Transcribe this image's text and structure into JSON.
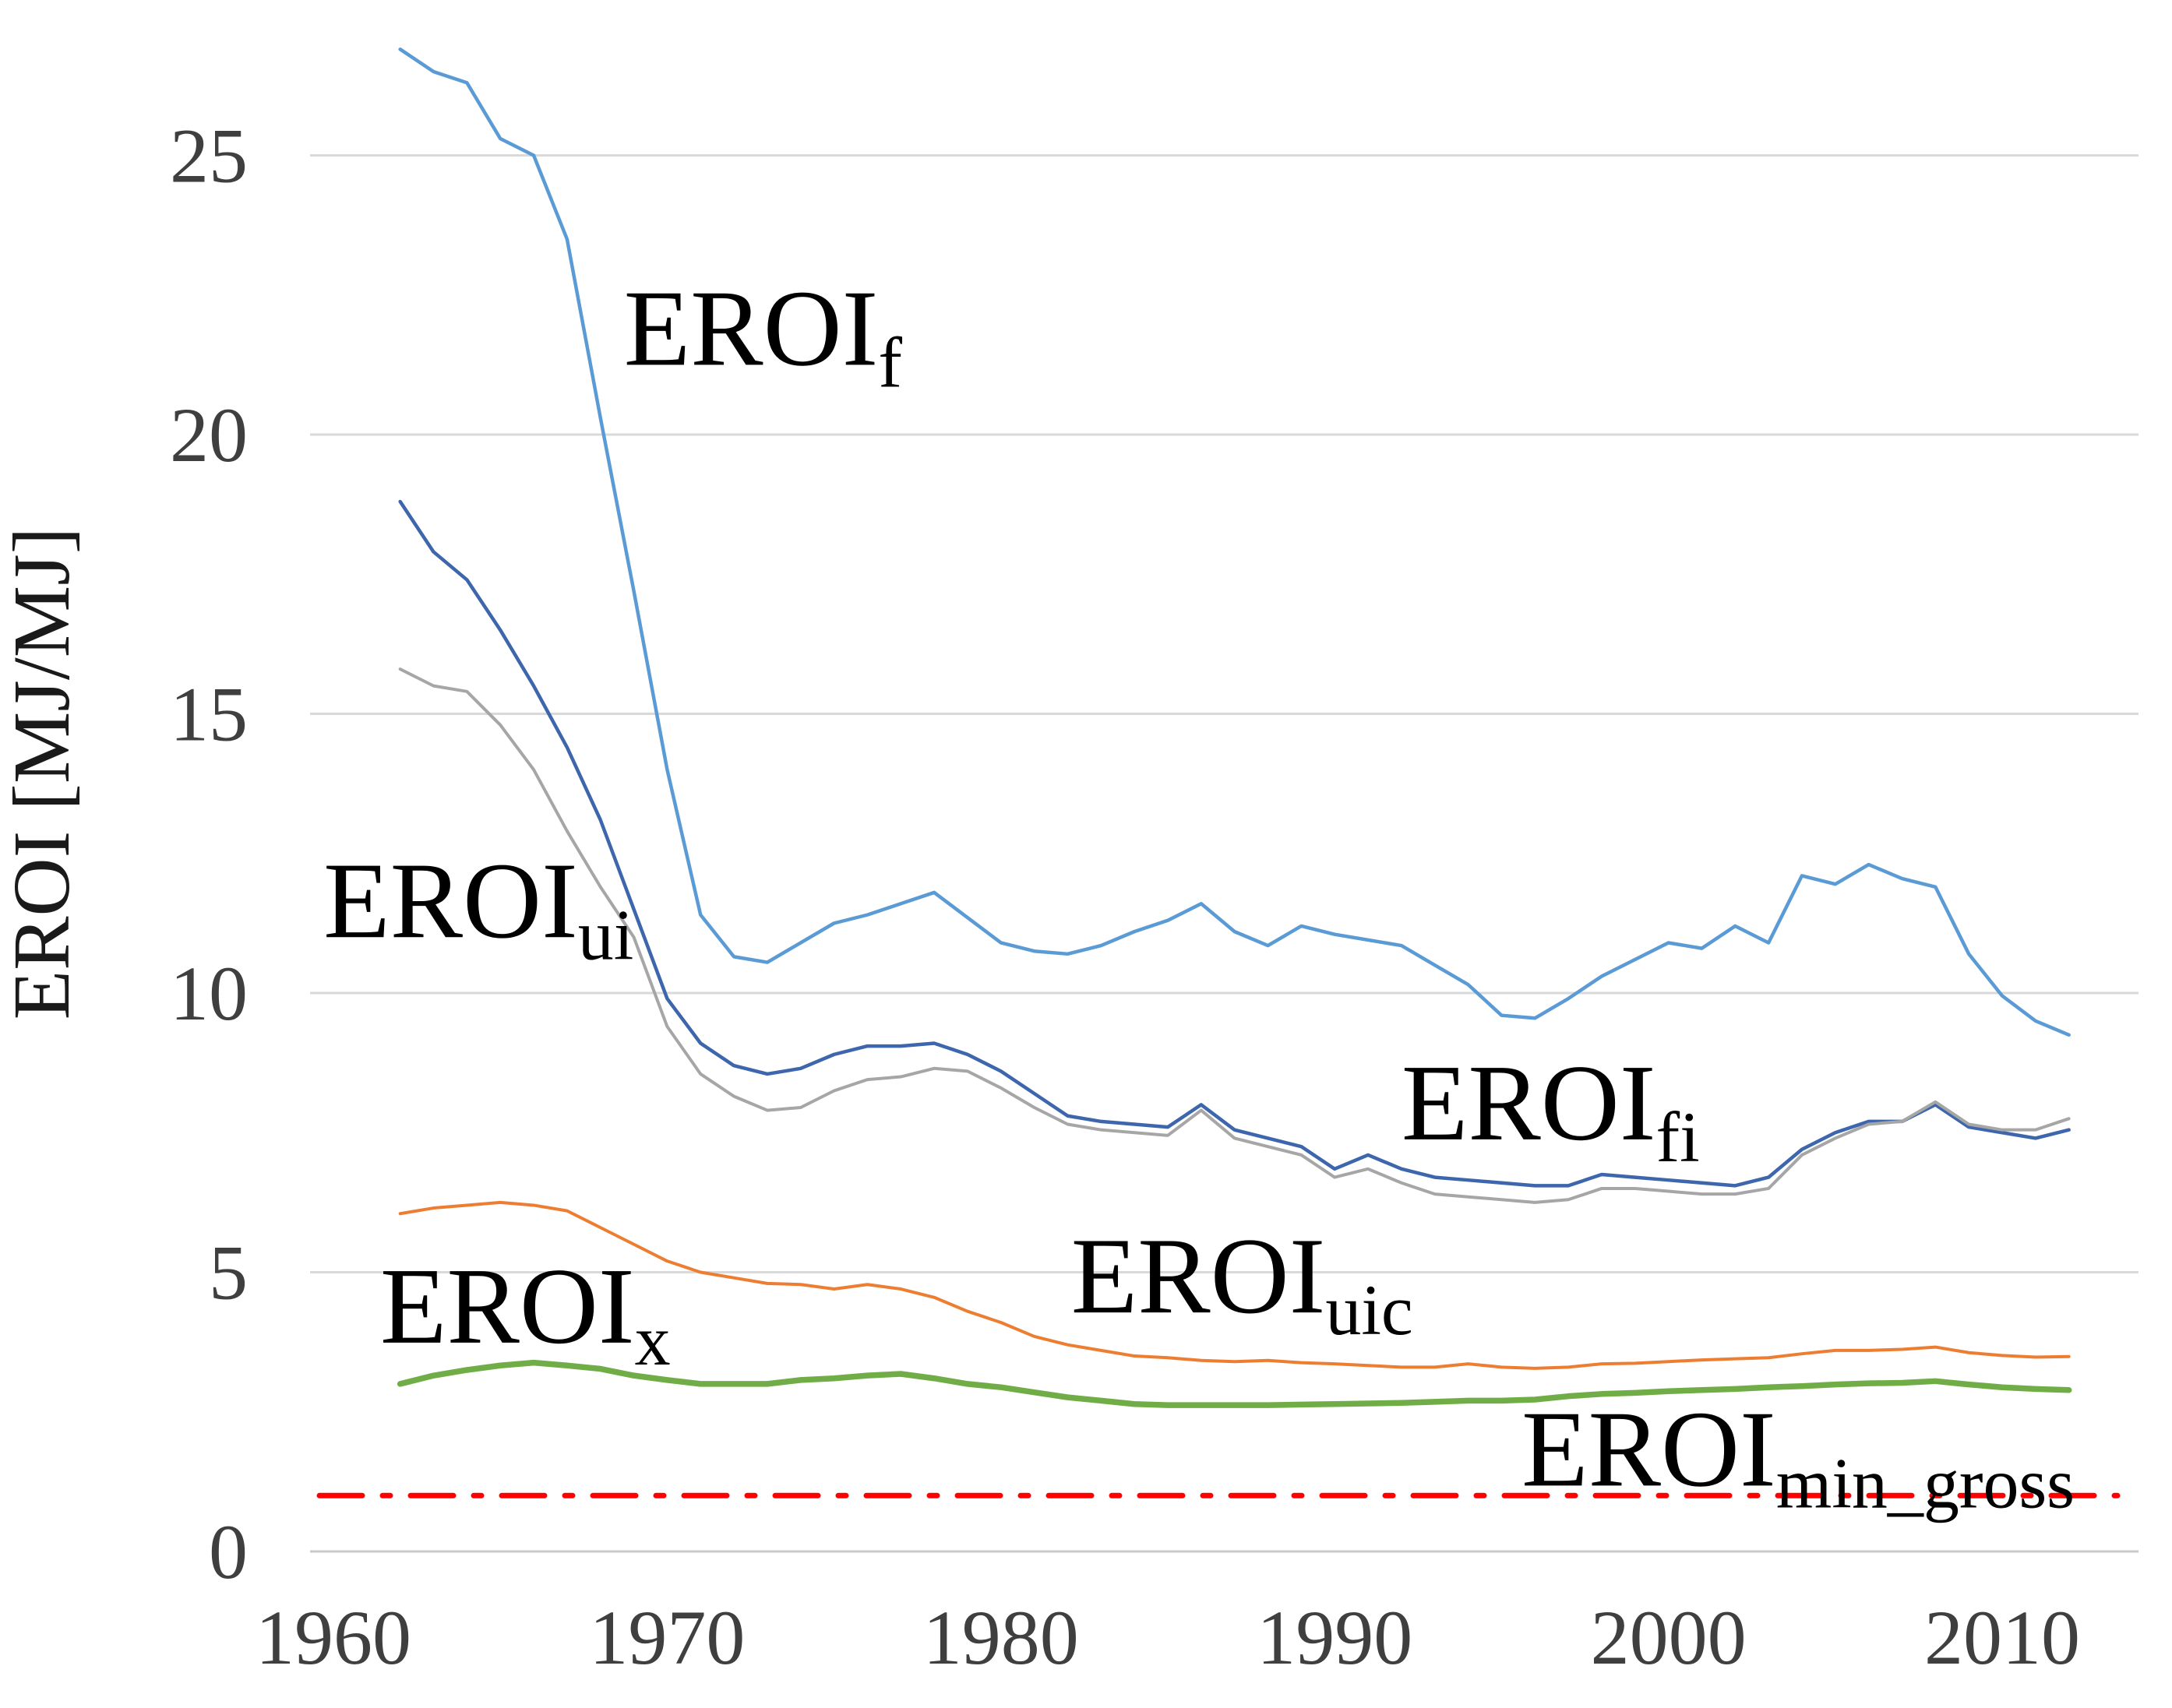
{
  "chart_data": {
    "type": "line",
    "title": "",
    "xlabel": "",
    "ylabel": "EROI [MJ/MJ]",
    "xlim": [
      1959.3,
      2014.9
    ],
    "ylim": [
      0,
      27.8
    ],
    "x_ticks": [
      1960,
      1970,
      1980,
      1990,
      2000,
      2010
    ],
    "y_ticks": [
      0,
      5,
      10,
      15,
      20,
      25
    ],
    "grid": "horizontal-only",
    "legend": "inline-annotations",
    "colors": {
      "grid": "#D9D9D9",
      "axis": "#C9C9C9",
      "tick_text": "#3F3F3F",
      "annotation_text": "#000000",
      "background": "#FFFFFF"
    },
    "years": [
      1962,
      1963,
      1964,
      1965,
      1966,
      1967,
      1968,
      1969,
      1970,
      1971,
      1972,
      1973,
      1974,
      1975,
      1976,
      1977,
      1978,
      1979,
      1980,
      1981,
      1982,
      1983,
      1984,
      1985,
      1986,
      1987,
      1988,
      1989,
      1990,
      1991,
      1992,
      1993,
      1994,
      1995,
      1996,
      1997,
      1998,
      1999,
      2000,
      2001,
      2002,
      2003,
      2004,
      2005,
      2006,
      2007,
      2008,
      2009,
      2010,
      2011,
      2012
    ],
    "series": [
      {
        "id": "EROIf",
        "label_main": "EROI",
        "label_sub": "f",
        "color": "#5B9BD5",
        "stroke_width": 4.5,
        "values": [
          26.9,
          26.5,
          26.3,
          25.3,
          25.0,
          23.5,
          20.3,
          17.2,
          14.0,
          11.4,
          10.65,
          10.55,
          10.9,
          11.25,
          11.4,
          11.6,
          11.8,
          11.35,
          10.9,
          10.75,
          10.7,
          10.85,
          11.1,
          11.3,
          11.6,
          11.1,
          10.85,
          11.2,
          11.05,
          10.95,
          10.85,
          10.5,
          10.15,
          9.6,
          9.55,
          9.9,
          10.3,
          10.6,
          10.9,
          10.8,
          11.2,
          10.9,
          12.1,
          11.95,
          12.3,
          12.05,
          11.9,
          10.7,
          9.95,
          9.5,
          9.25
        ]
      },
      {
        "id": "EROIui",
        "label_main": "EROI",
        "label_sub": "ui",
        "color": "#3D66AC",
        "stroke_width": 4.5,
        "values": [
          18.8,
          17.9,
          17.4,
          16.5,
          15.5,
          14.4,
          13.1,
          11.5,
          9.9,
          9.1,
          8.7,
          8.55,
          8.65,
          8.9,
          9.05,
          9.05,
          9.1,
          8.9,
          8.6,
          8.2,
          7.8,
          7.7,
          7.65,
          7.6,
          8.0,
          7.55,
          7.4,
          7.25,
          6.85,
          7.1,
          6.85,
          6.7,
          6.65,
          6.6,
          6.55,
          6.55,
          6.75,
          6.7,
          6.65,
          6.6,
          6.55,
          6.7,
          7.2,
          7.5,
          7.7,
          7.7,
          8.0,
          7.6,
          7.5,
          7.4,
          7.55
        ]
      },
      {
        "id": "EROIfi",
        "label_main": "EROI",
        "label_sub": "fi",
        "color": "#A6A6A6",
        "stroke_width": 4,
        "values": [
          15.8,
          15.5,
          15.4,
          14.8,
          14.0,
          12.9,
          11.9,
          11.0,
          9.4,
          8.55,
          8.15,
          7.9,
          7.95,
          8.25,
          8.45,
          8.5,
          8.65,
          8.6,
          8.3,
          7.95,
          7.65,
          7.55,
          7.5,
          7.45,
          7.9,
          7.4,
          7.25,
          7.1,
          6.7,
          6.85,
          6.6,
          6.4,
          6.35,
          6.3,
          6.25,
          6.3,
          6.5,
          6.5,
          6.45,
          6.4,
          6.4,
          6.5,
          7.1,
          7.4,
          7.65,
          7.7,
          8.05,
          7.65,
          7.55,
          7.55,
          7.75
        ]
      },
      {
        "id": "EROIuic",
        "label_main": "EROI",
        "label_sub": "uic",
        "color": "#ED7D31",
        "stroke_width": 4,
        "values": [
          6.05,
          6.15,
          6.2,
          6.25,
          6.2,
          6.1,
          5.8,
          5.5,
          5.2,
          5.0,
          4.9,
          4.8,
          4.78,
          4.7,
          4.78,
          4.7,
          4.55,
          4.3,
          4.1,
          3.85,
          3.7,
          3.6,
          3.5,
          3.47,
          3.42,
          3.4,
          3.42,
          3.38,
          3.36,
          3.33,
          3.3,
          3.3,
          3.36,
          3.3,
          3.28,
          3.3,
          3.36,
          3.37,
          3.4,
          3.43,
          3.45,
          3.47,
          3.54,
          3.6,
          3.6,
          3.62,
          3.66,
          3.56,
          3.51,
          3.48,
          3.49
        ]
      },
      {
        "id": "EROIx",
        "label_main": "EROI",
        "label_sub": "x",
        "color": "#70AD47",
        "stroke_width": 7.5,
        "values": [
          3.0,
          3.15,
          3.25,
          3.33,
          3.38,
          3.33,
          3.27,
          3.15,
          3.07,
          3.0,
          3.0,
          3.0,
          3.07,
          3.1,
          3.15,
          3.18,
          3.1,
          3.0,
          2.94,
          2.85,
          2.76,
          2.7,
          2.64,
          2.62,
          2.62,
          2.62,
          2.62,
          2.63,
          2.64,
          2.65,
          2.66,
          2.68,
          2.7,
          2.7,
          2.72,
          2.78,
          2.82,
          2.84,
          2.87,
          2.89,
          2.91,
          2.94,
          2.96,
          2.99,
          3.01,
          3.02,
          3.05,
          2.99,
          2.94,
          2.91,
          2.89
        ]
      }
    ],
    "reference_line": {
      "id": "EROImin_gross",
      "label_main": "EROI",
      "label_sub": "min_gross",
      "color": "#FF0000",
      "stroke_width": 7,
      "style": "dash-dot",
      "value": 1.0
    },
    "annotations": [
      {
        "series": "EROIf",
        "main": "EROI",
        "sub": "f",
        "year": 1968.7,
        "value": 21.25
      },
      {
        "series": "EROIui",
        "main": "EROI",
        "sub": "ui",
        "year": 1959.7,
        "value": 11.0
      },
      {
        "series": "EROIfi",
        "main": "EROI",
        "sub": "fi",
        "year": 1992.0,
        "value": 7.38
      },
      {
        "series": "EROIuic",
        "main": "EROI",
        "sub": "uic",
        "year": 1982.1,
        "value": 4.28
      },
      {
        "series": "EROIx",
        "main": "EROI",
        "sub": "x",
        "year": 1961.4,
        "value": 3.74
      },
      {
        "series": "EROImin_gross",
        "main": "EROI",
        "sub": "min_gross",
        "year": 1995.6,
        "value": 1.18
      }
    ]
  }
}
